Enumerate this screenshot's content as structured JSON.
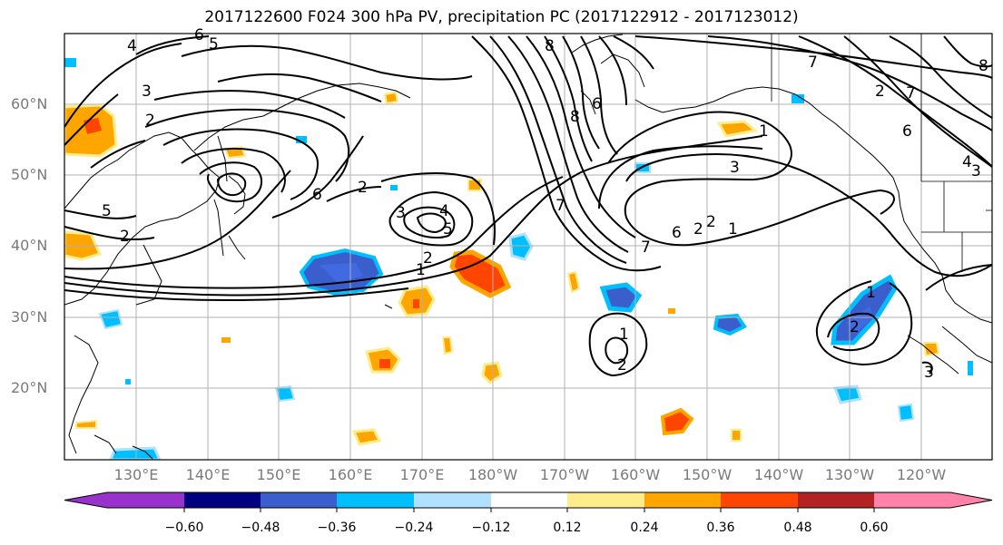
{
  "title": "2017122600 F024 300 hPa PV, precipitation PC (2017122912 - 2017123012)",
  "lat_labels": [
    "60°N",
    "50°N",
    "40°N",
    "30°N",
    "20°N"
  ],
  "lon_labels": [
    "130°E",
    "140°E",
    "150°E",
    "160°E",
    "170°E",
    "180°W",
    "170°W",
    "160°W",
    "150°W",
    "140°W",
    "130°W",
    "120°W"
  ],
  "colorbar": {
    "colors": [
      "#9932cc",
      "#000080",
      "#3a5fcd",
      "#00bfff",
      "#b0e2ff",
      "#ffffff",
      "#ffec8b",
      "#ffa500",
      "#ff4500",
      "#b22222",
      "#ff82ab"
    ],
    "labels": [
      "−0.60",
      "−0.48",
      "−0.36",
      "−0.24",
      "−0.12",
      "0.12",
      "0.24",
      "0.36",
      "0.48",
      "0.60"
    ]
  },
  "contour_labels": [
    "1",
    "2",
    "3",
    "4",
    "5",
    "6",
    "7",
    "8"
  ]
}
